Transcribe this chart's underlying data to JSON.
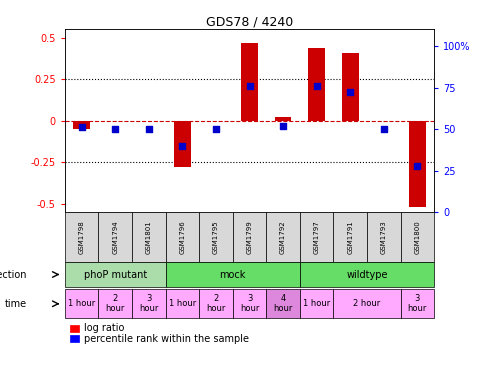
{
  "title": "GDS78 / 4240",
  "samples": [
    "GSM1798",
    "GSM1794",
    "GSM1801",
    "GSM1796",
    "GSM1795",
    "GSM1799",
    "GSM1792",
    "GSM1797",
    "GSM1791",
    "GSM1793",
    "GSM1800"
  ],
  "log_ratio": [
    -0.05,
    0.0,
    0.0,
    -0.28,
    0.0,
    0.47,
    0.02,
    0.44,
    0.41,
    0.0,
    -0.52
  ],
  "percentile": [
    51,
    50,
    50,
    40,
    50,
    76,
    52,
    76,
    72,
    50,
    28
  ],
  "bar_color": "#cc0000",
  "dot_color": "#0000cc",
  "zero_line_color": "#cc0000",
  "dotted_line_color": "#000000",
  "ylim_left": [
    -0.55,
    0.55
  ],
  "ylim_right": [
    0,
    110
  ],
  "yticks_left": [
    -0.5,
    -0.25,
    0,
    0.25,
    0.5
  ],
  "yticks_right": [
    0,
    25,
    50,
    75,
    100
  ],
  "ytick_labels_right": [
    "0",
    "25",
    "50",
    "75",
    "100%"
  ],
  "infection_groups": [
    {
      "label": "phoP mutant",
      "start": 0,
      "end": 3,
      "color": "#aaddaa"
    },
    {
      "label": "mock",
      "start": 3,
      "end": 7,
      "color": "#66dd66"
    },
    {
      "label": "wildtype",
      "start": 7,
      "end": 11,
      "color": "#66dd66"
    }
  ],
  "time_cells": [
    {
      "label": "1 hour",
      "start": 0,
      "end": 1,
      "color": "#ffaaff"
    },
    {
      "label": "2\nhour",
      "start": 1,
      "end": 2,
      "color": "#ffaaff"
    },
    {
      "label": "3\nhour",
      "start": 2,
      "end": 3,
      "color": "#ffaaff"
    },
    {
      "label": "1 hour",
      "start": 3,
      "end": 4,
      "color": "#ffaaff"
    },
    {
      "label": "2\nhour",
      "start": 4,
      "end": 5,
      "color": "#ffaaff"
    },
    {
      "label": "3\nhour",
      "start": 5,
      "end": 6,
      "color": "#ffaaff"
    },
    {
      "label": "4\nhour",
      "start": 6,
      "end": 7,
      "color": "#dd88dd"
    },
    {
      "label": "1 hour",
      "start": 7,
      "end": 8,
      "color": "#ffaaff"
    },
    {
      "label": "2 hour",
      "start": 8,
      "end": 10,
      "color": "#ffaaff"
    },
    {
      "label": "3\nhour",
      "start": 10,
      "end": 11,
      "color": "#ffaaff"
    }
  ],
  "legend_red": "log ratio",
  "legend_blue": "percentile rank within the sample",
  "background_color": "#ffffff",
  "bar_width": 0.5,
  "dot_size": 18
}
